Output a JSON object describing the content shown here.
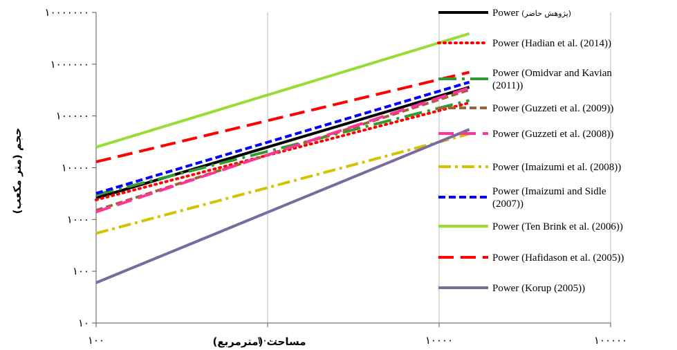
{
  "chart_data": {
    "type": "line",
    "xscale": "log",
    "yscale": "log",
    "xlim": [
      100,
      100000
    ],
    "ylim": [
      10,
      10000000
    ],
    "xlabel": "مساحت (مترمربع)",
    "ylabel": "حجم (متر مکعب)",
    "x_tick_labels": [
      "۱۰۰",
      "۱۰۰۰",
      "۱۰۰۰۰",
      "۱۰۰۰۰۰"
    ],
    "y_tick_labels": [
      "۱۰",
      "۱۰۰",
      "۱۰۰۰",
      "۱۰۰۰۰",
      "۱۰۰۰۰۰",
      "۱۰۰۰۰۰۰",
      "۱۰۰۰۰۰۰۰"
    ],
    "legend_position": "right",
    "grid": {
      "vertical": true,
      "horizontal": false
    },
    "series": [
      {
        "name_prefix": "Power",
        "name_rest": "(پژوهش حاضر)",
        "color": "#000000",
        "dash": "solid",
        "x": [
          100,
          15000
        ],
        "y": [
          2600,
          360000
        ]
      },
      {
        "name_prefix": "Power",
        "name_rest": "(Hadian et al. (2014))",
        "color": "#ff0000",
        "dash": "dot",
        "x": [
          100,
          15000
        ],
        "y": [
          2400,
          180000
        ]
      },
      {
        "name_prefix": "Power",
        "name_rest": "(Omidvar and Kavian (2011))",
        "color": "#339933",
        "dash": "dashdot-green",
        "x": [
          100,
          15000
        ],
        "y": [
          3000,
          200000
        ]
      },
      {
        "name_prefix": "Power",
        "name_rest": "(Guzzeti et al. (2009))",
        "color": "#996633",
        "dash": "dash",
        "x": [
          100,
          15000
        ],
        "y": [
          1500,
          320000
        ]
      },
      {
        "name_prefix": "Power",
        "name_rest": "(Guzzeti et al. (2008))",
        "color": "#ff3399",
        "dash": "longdash",
        "x": [
          100,
          15000
        ],
        "y": [
          1400,
          350000
        ]
      },
      {
        "name_prefix": "Power",
        "name_rest": "(Imaizumi et al. (2008))",
        "color": "#d4c400",
        "dash": "dashdot",
        "x": [
          100,
          15000
        ],
        "y": [
          540,
          45000
        ]
      },
      {
        "name_prefix": "Power",
        "name_rest": "(Imaizumi and Sidle (2007))",
        "color": "#0000ff",
        "dash": "dash",
        "x": [
          100,
          15000
        ],
        "y": [
          3200,
          450000
        ]
      },
      {
        "name_prefix": "Power",
        "name_rest": "(Ten Brink et al. (2006))",
        "color": "#99dd33",
        "dash": "solid",
        "x": [
          100,
          15000
        ],
        "y": [
          25000,
          3900000
        ]
      },
      {
        "name_prefix": "Power",
        "name_rest": "(Hafidason et al. (2005))",
        "color": "#ff0000",
        "dash": "longdash",
        "x": [
          100,
          15000
        ],
        "y": [
          13000,
          700000
        ]
      },
      {
        "name_prefix": "Power",
        "name_rest": "(Korup (2005))",
        "color": "#7a6aa0",
        "dash": "solid",
        "x": [
          100,
          15000
        ],
        "y": [
          60,
          55000
        ]
      }
    ]
  }
}
